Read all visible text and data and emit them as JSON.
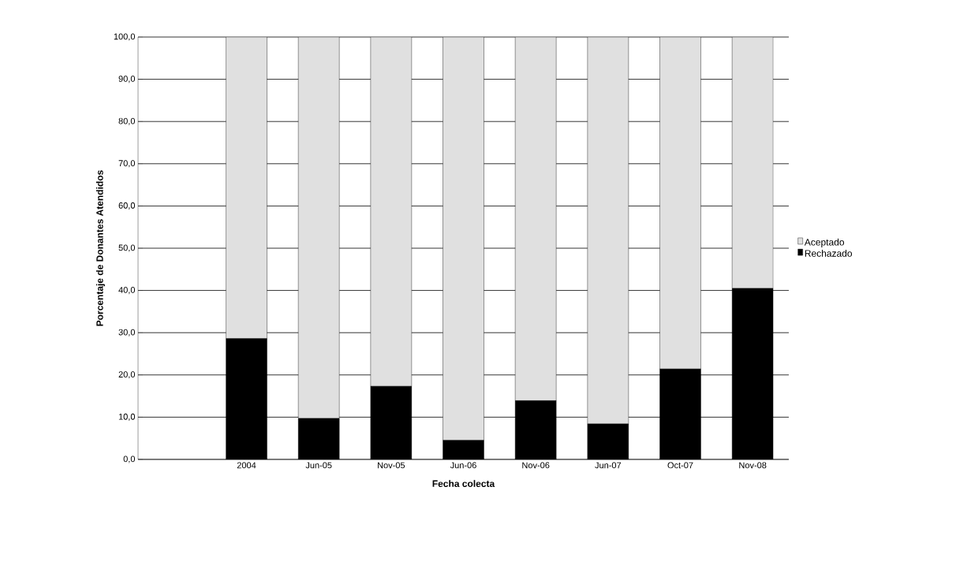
{
  "chart_data": {
    "type": "bar",
    "stacked": true,
    "xlabel": "Fecha colecta",
    "ylabel": "Porcentaje de Donantes Atendidos",
    "categories": [
      null,
      "2004",
      "Jun-05",
      "Nov-05",
      "Jun-06",
      "Nov-06",
      "Jun-07",
      "Oct-07",
      "Nov-08"
    ],
    "series": [
      {
        "name": "Rechazado",
        "color": "#000000",
        "values": [
          null,
          28.6,
          9.7,
          17.3,
          4.5,
          13.9,
          8.4,
          21.4,
          40.5
        ]
      },
      {
        "name": "Aceptado",
        "color": "#e0e0e0",
        "values": [
          null,
          71.4,
          90.3,
          82.7,
          95.5,
          86.1,
          91.6,
          78.6,
          59.5
        ]
      }
    ],
    "ylim": [
      0,
      100
    ],
    "yticks": [
      {
        "value": 0,
        "label": "0,0"
      },
      {
        "value": 10,
        "label": "10,0"
      },
      {
        "value": 20,
        "label": "20,0"
      },
      {
        "value": 30,
        "label": "30,0"
      },
      {
        "value": 40,
        "label": "40,0"
      },
      {
        "value": 50,
        "label": "50,0"
      },
      {
        "value": 60,
        "label": "60,0"
      },
      {
        "value": 70,
        "label": "70,0"
      },
      {
        "value": 80,
        "label": "80,0"
      },
      {
        "value": 90,
        "label": "90,0"
      },
      {
        "value": 100,
        "label": "100,0"
      }
    ],
    "grid": "y",
    "legend": "right"
  }
}
